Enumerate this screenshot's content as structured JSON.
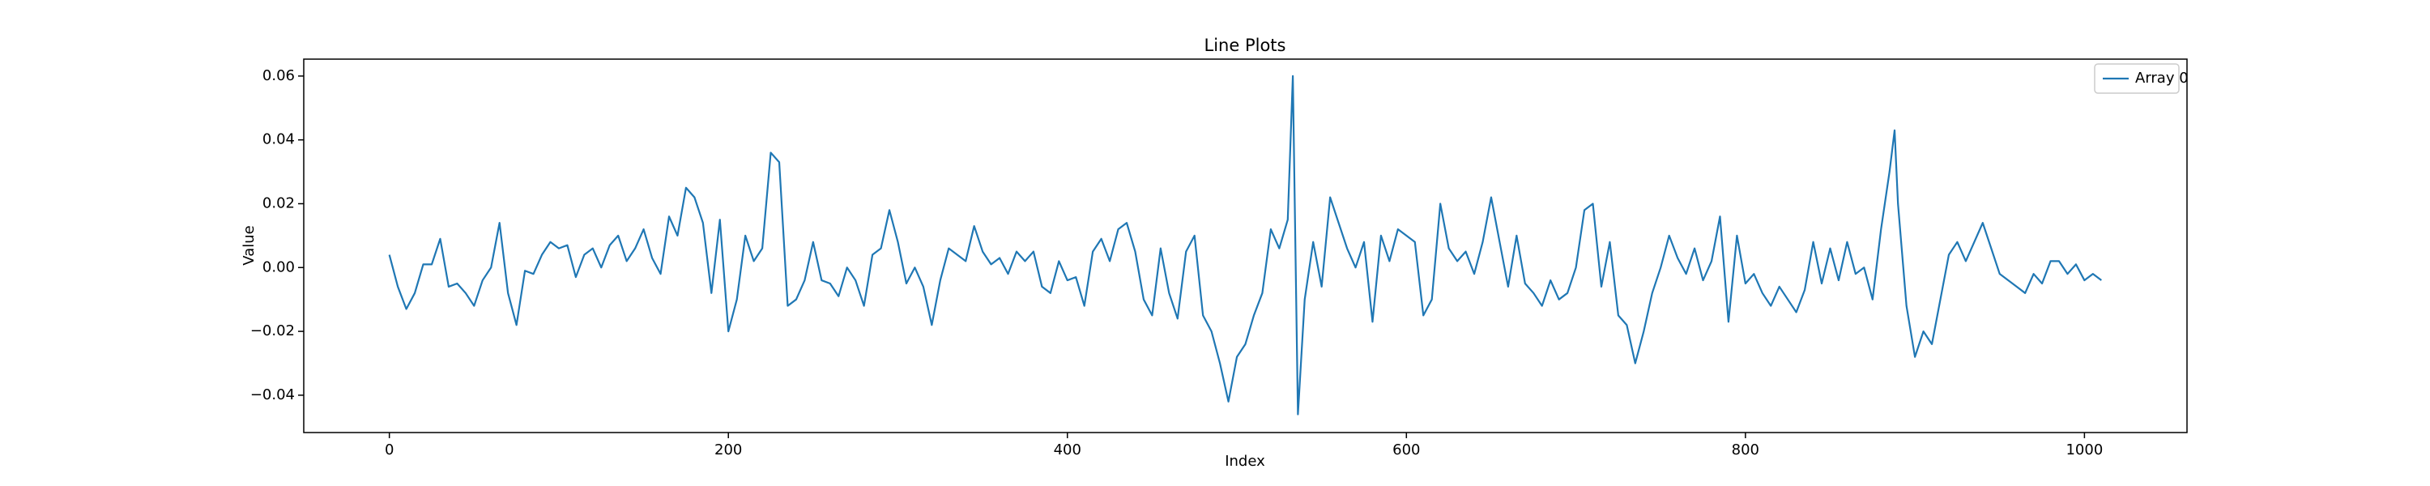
{
  "chart_data": {
    "type": "line",
    "title": "Line Plots",
    "x_label": "Index",
    "y_label": "Value",
    "x": [
      0,
      5,
      10,
      15,
      20,
      25,
      30,
      35,
      40,
      45,
      50,
      55,
      60,
      65,
      70,
      75,
      80,
      85,
      90,
      95,
      100,
      105,
      110,
      115,
      120,
      125,
      130,
      135,
      140,
      145,
      150,
      155,
      160,
      165,
      170,
      175,
      180,
      185,
      190,
      195,
      200,
      205,
      210,
      215,
      220,
      225,
      230,
      235,
      240,
      245,
      250,
      255,
      260,
      265,
      270,
      275,
      280,
      285,
      290,
      295,
      300,
      305,
      310,
      315,
      320,
      325,
      330,
      335,
      340,
      345,
      350,
      355,
      360,
      365,
      370,
      375,
      380,
      385,
      390,
      395,
      400,
      405,
      410,
      415,
      420,
      425,
      430,
      435,
      440,
      445,
      450,
      455,
      460,
      465,
      470,
      475,
      480,
      485,
      490,
      495,
      500,
      505,
      510,
      515,
      520,
      525,
      530,
      533,
      536,
      540,
      545,
      550,
      555,
      560,
      565,
      570,
      575,
      580,
      585,
      590,
      595,
      600,
      605,
      610,
      615,
      620,
      625,
      630,
      635,
      640,
      645,
      650,
      655,
      660,
      665,
      670,
      675,
      680,
      685,
      690,
      695,
      700,
      705,
      710,
      715,
      720,
      725,
      730,
      735,
      740,
      745,
      750,
      755,
      760,
      765,
      770,
      775,
      780,
      785,
      790,
      795,
      800,
      805,
      810,
      815,
      820,
      825,
      830,
      835,
      840,
      845,
      850,
      855,
      860,
      865,
      870,
      875,
      880,
      885,
      888,
      890,
      895,
      900,
      905,
      910,
      915,
      920,
      925,
      930,
      935,
      940,
      945,
      950,
      955,
      960,
      965,
      970,
      975,
      980,
      985,
      990,
      995,
      1000,
      1005,
      1010
    ],
    "series": [
      {
        "name": "Array 0",
        "color": "#1f77b4",
        "values": [
          0.004,
          -0.006,
          -0.013,
          -0.008,
          0.001,
          0.001,
          0.009,
          -0.006,
          -0.005,
          -0.008,
          -0.012,
          -0.004,
          0.0,
          0.014,
          -0.008,
          -0.018,
          -0.001,
          -0.002,
          0.004,
          0.008,
          0.006,
          0.007,
          -0.003,
          0.004,
          0.006,
          0.0,
          0.007,
          0.01,
          0.002,
          0.006,
          0.012,
          0.003,
          -0.002,
          0.016,
          0.01,
          0.025,
          0.022,
          0.014,
          -0.008,
          0.015,
          -0.02,
          -0.01,
          0.01,
          0.002,
          0.006,
          0.036,
          0.033,
          -0.012,
          -0.01,
          -0.004,
          0.008,
          -0.004,
          -0.005,
          -0.009,
          0.0,
          -0.004,
          -0.012,
          0.004,
          0.006,
          0.018,
          0.008,
          -0.005,
          0.0,
          -0.006,
          -0.018,
          -0.004,
          0.006,
          0.004,
          0.002,
          0.013,
          0.005,
          0.001,
          0.003,
          -0.002,
          0.005,
          0.002,
          0.005,
          -0.006,
          -0.008,
          0.002,
          -0.004,
          -0.003,
          -0.012,
          0.005,
          0.009,
          0.002,
          0.012,
          0.014,
          0.005,
          -0.01,
          -0.015,
          0.006,
          -0.008,
          -0.016,
          0.005,
          0.01,
          -0.015,
          -0.02,
          -0.03,
          -0.042,
          -0.028,
          -0.024,
          -0.015,
          -0.008,
          0.012,
          0.006,
          0.015,
          0.06,
          -0.046,
          -0.01,
          0.008,
          -0.006,
          0.022,
          0.014,
          0.006,
          0.0,
          0.008,
          -0.017,
          0.01,
          0.002,
          0.012,
          0.01,
          0.008,
          -0.015,
          -0.01,
          0.02,
          0.006,
          0.002,
          0.005,
          -0.002,
          0.008,
          0.022,
          0.008,
          -0.006,
          0.01,
          -0.005,
          -0.008,
          -0.012,
          -0.004,
          -0.01,
          -0.008,
          0.0,
          0.018,
          0.02,
          -0.006,
          0.008,
          -0.015,
          -0.018,
          -0.03,
          -0.02,
          -0.008,
          0.0,
          0.01,
          0.003,
          -0.002,
          0.006,
          -0.004,
          0.002,
          0.016,
          -0.017,
          0.01,
          -0.005,
          -0.002,
          -0.008,
          -0.012,
          -0.006,
          -0.01,
          -0.014,
          -0.007,
          0.008,
          -0.005,
          0.006,
          -0.004,
          0.008,
          -0.002,
          0.0,
          -0.01,
          0.012,
          0.03,
          0.043,
          0.02,
          -0.012,
          -0.028,
          -0.02,
          -0.024,
          -0.01,
          0.004,
          0.008,
          0.002,
          0.008,
          0.014,
          0.006,
          -0.002,
          -0.004,
          -0.006,
          -0.008,
          -0.002,
          -0.005,
          0.002,
          0.002,
          -0.002,
          0.001,
          -0.004,
          -0.002,
          -0.004
        ]
      }
    ],
    "xlim": [
      -50.5,
      1060.5
    ],
    "xticks": [
      0,
      200,
      400,
      600,
      800,
      1000
    ],
    "ylim": [
      -0.0517,
      0.0653
    ],
    "yticks": [
      {
        "value": -0.04,
        "label": "−0.04"
      },
      {
        "value": -0.02,
        "label": "−0.02"
      },
      {
        "value": 0,
        "label": "0.00"
      },
      {
        "value": 0.02,
        "label": "0.02"
      },
      {
        "value": 0.04,
        "label": "0.04"
      },
      {
        "value": 0.06,
        "label": "0.06"
      }
    ],
    "legend": "upper right",
    "grid": false
  }
}
